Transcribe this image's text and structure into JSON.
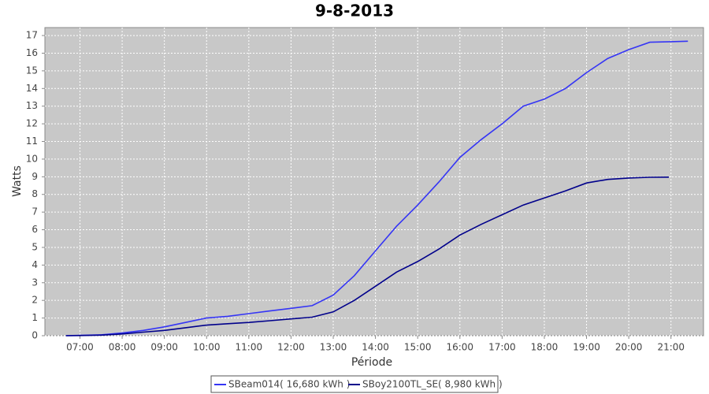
{
  "chart_data": {
    "type": "line",
    "title": "9-8-2013",
    "x_label": "Période",
    "y_label": "Watts",
    "xlim": [
      6.17,
      21.77
    ],
    "ylim": [
      0,
      17.45
    ],
    "xticks": [
      {
        "value": 7,
        "label": "07:00"
      },
      {
        "value": 8,
        "label": "08:00"
      },
      {
        "value": 9,
        "label": "09:00"
      },
      {
        "value": 10,
        "label": "10:00"
      },
      {
        "value": 11,
        "label": "11:00"
      },
      {
        "value": 12,
        "label": "12:00"
      },
      {
        "value": 13,
        "label": "13:00"
      },
      {
        "value": 14,
        "label": "14:00"
      },
      {
        "value": 15,
        "label": "15:00"
      },
      {
        "value": 16,
        "label": "16:00"
      },
      {
        "value": 17,
        "label": "17:00"
      },
      {
        "value": 18,
        "label": "18:00"
      },
      {
        "value": 19,
        "label": "19:00"
      },
      {
        "value": 20,
        "label": "20:00"
      },
      {
        "value": 21,
        "label": "21:00"
      }
    ],
    "yticks": [
      0,
      1,
      2,
      3,
      4,
      5,
      6,
      7,
      8,
      9,
      10,
      11,
      12,
      13,
      14,
      15,
      16,
      17
    ],
    "grid": true,
    "series": [
      {
        "name": "SBeam014( 16,680 kWh )",
        "color": "#3535f5",
        "x": [
          6.67,
          7,
          7.5,
          8,
          8.5,
          9,
          9.5,
          10,
          10.5,
          11,
          11.5,
          12,
          12.5,
          13,
          13.5,
          14,
          14.5,
          15,
          15.5,
          16,
          16.5,
          17,
          17.5,
          18,
          18.5,
          19,
          19.5,
          20,
          20.5,
          21,
          21.4
        ],
        "values": [
          0,
          0.02,
          0.05,
          0.15,
          0.3,
          0.5,
          0.75,
          1.0,
          1.1,
          1.25,
          1.4,
          1.55,
          1.7,
          2.3,
          3.4,
          4.8,
          6.2,
          7.4,
          8.7,
          10.1,
          11.1,
          12.0,
          13.0,
          13.4,
          14.0,
          14.9,
          15.7,
          16.2,
          16.62,
          16.65,
          16.68
        ]
      },
      {
        "name": "SBoy2100TL_SE( 8,980 kWh )",
        "color": "#00008b",
        "x": [
          6.67,
          7,
          7.5,
          8,
          8.5,
          9,
          9.5,
          10,
          10.5,
          11,
          11.5,
          12,
          12.5,
          13,
          13.5,
          14,
          14.5,
          15,
          15.5,
          16,
          16.5,
          17,
          17.5,
          18,
          18.5,
          19,
          19.5,
          20,
          20.5,
          20.95
        ],
        "values": [
          0,
          0.01,
          0.03,
          0.1,
          0.2,
          0.3,
          0.45,
          0.6,
          0.68,
          0.75,
          0.85,
          0.95,
          1.05,
          1.35,
          2.0,
          2.8,
          3.6,
          4.2,
          4.9,
          5.7,
          6.3,
          6.85,
          7.4,
          7.8,
          8.2,
          8.65,
          8.85,
          8.93,
          8.97,
          8.98
        ]
      }
    ]
  }
}
